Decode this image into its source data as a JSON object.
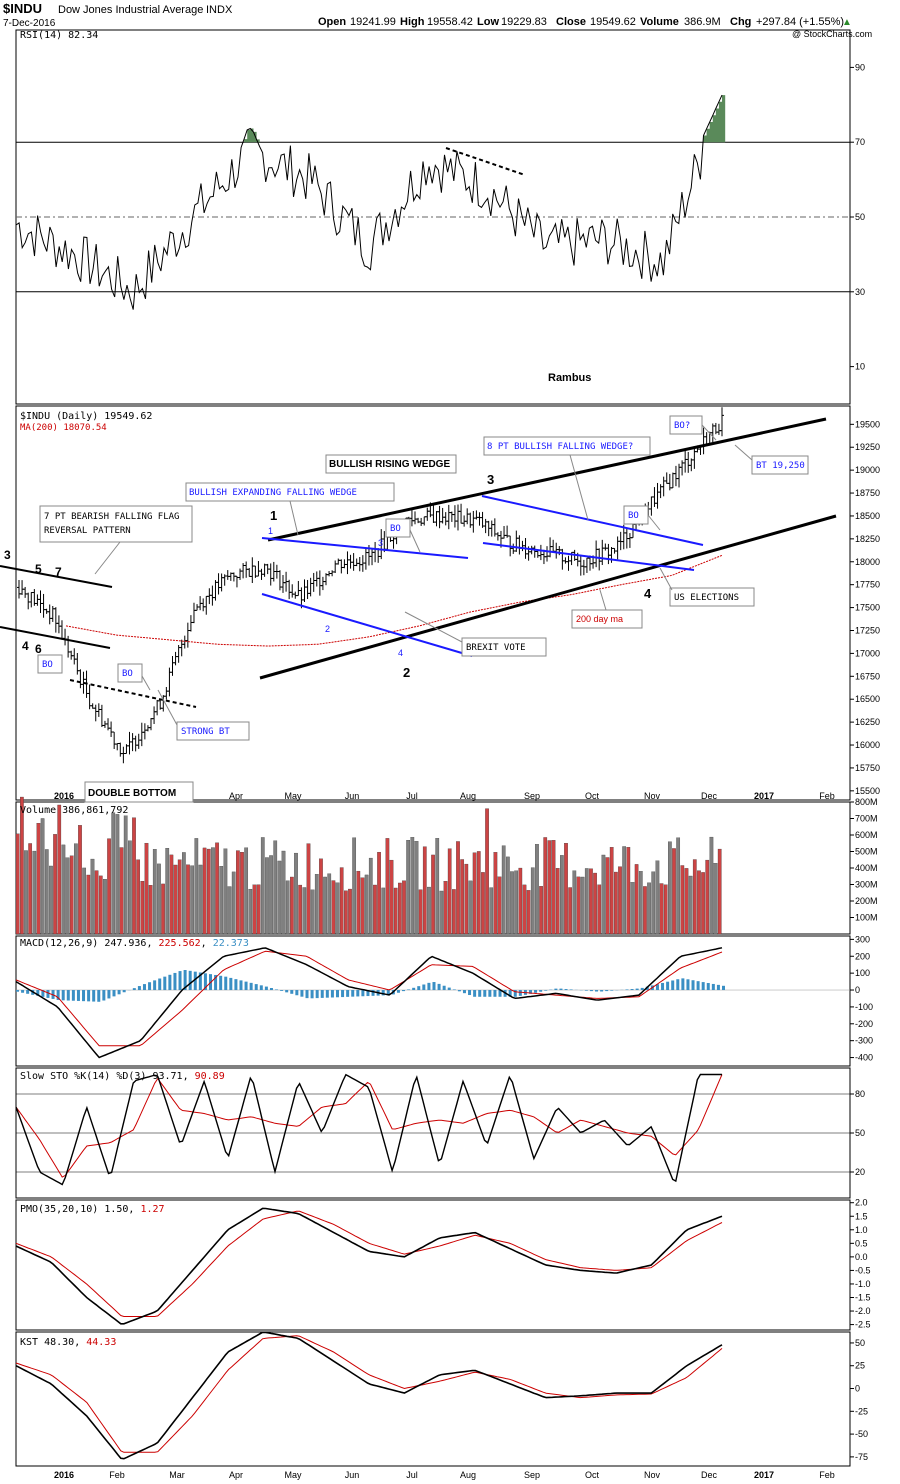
{
  "header": {
    "symbol": "$INDU",
    "name": "Dow Jones Industrial Average",
    "exchange": "INDX",
    "date": "7-Dec-2016",
    "open_label": "Open",
    "open": "19241.99",
    "high_label": "High",
    "high": "19558.42",
    "low_label": "Low",
    "low": "19229.83",
    "close_label": "Close",
    "close": "19549.62",
    "volume_label": "Volume",
    "volume": "386.9M",
    "chg_label": "Chg",
    "chg": "+297.84 (+1.55%)",
    "chg_arrow": "▲",
    "watermark": "@ StockCharts.com"
  },
  "colors": {
    "up": "#000000",
    "down": "#cc0000",
    "vol_up": "#808080",
    "vol_down": "#cc4444",
    "macd_hist": "#3a8fc4",
    "rsi_fill": "#5a8a5a",
    "blue_annot": "#1a1aff",
    "signal": "#cc0000"
  },
  "chart_data": [
    {
      "type": "line",
      "panel": "rsi",
      "label": "RSI(14) 82.34",
      "y_ticks": [
        90,
        70,
        50,
        30,
        10
      ],
      "ylim": [
        0,
        100
      ],
      "annotation": "Rambus",
      "series": [
        {
          "name": "RSI(14)",
          "x": [
            "Dec",
            "Jan",
            "Feb",
            "Mar",
            "Apr",
            "May",
            "Jun",
            "Jul",
            "Aug",
            "Sep",
            "Oct",
            "Nov",
            "Dec"
          ],
          "values": [
            48,
            40,
            30,
            50,
            68,
            60,
            42,
            65,
            58,
            42,
            44,
            38,
            82
          ]
        }
      ]
    },
    {
      "type": "line",
      "panel": "price",
      "label": "$INDU (Daily) 19549.62",
      "ma_label": "MA(200) 18070.54",
      "y_ticks": [
        19500,
        19250,
        19000,
        18750,
        18500,
        18250,
        18000,
        17750,
        17500,
        17250,
        17000,
        16750,
        16500,
        16250,
        16000,
        15750,
        15500
      ],
      "ylim": [
        15400,
        19700
      ],
      "x_ticks": [
        "2016",
        "Feb",
        "Mar",
        "Apr",
        "May",
        "Jun",
        "Jul",
        "Aug",
        "Sep",
        "Oct",
        "Nov",
        "Dec",
        "2017",
        "Feb"
      ],
      "series": [
        {
          "name": "$INDU",
          "values": [
            17720,
            17400,
            16500,
            15900,
            16450,
            17500,
            17850,
            17950,
            17600,
            17980,
            18050,
            18450,
            18500,
            18450,
            18200,
            18100,
            18000,
            18150,
            18650,
            19100,
            19549
          ]
        },
        {
          "name": "MA(200)",
          "values": [
            17300,
            17200,
            17150,
            17100,
            17080,
            17100,
            17180,
            17300,
            17450,
            17560,
            17640,
            17750,
            17850,
            18070
          ]
        }
      ],
      "annotations": [
        "BULLISH RISING WEDGE",
        "BULLISH EXPANDING FALLING WEDGE",
        "8 PT BULLISH FALLING WEDGE?",
        "7 PT BEARISH FALLING FLAG REVERSAL PATTERN",
        "DOUBLE BOTTOM",
        "STRONG BT",
        "BREXIT VOTE",
        "US ELECTIONS",
        "200 day ma",
        "BT 19,250",
        "BO",
        "BO?"
      ]
    },
    {
      "type": "bar",
      "panel": "volume",
      "label": "Volume 386,861,792",
      "y_ticks": [
        "800M",
        "700M",
        "600M",
        "500M",
        "400M",
        "300M",
        "200M",
        "100M"
      ],
      "ylim": [
        0,
        800
      ]
    },
    {
      "type": "line",
      "panel": "macd",
      "label": "MACD(12,26,9)",
      "values_label": [
        "247.936",
        "225.562",
        "22.373"
      ],
      "y_ticks": [
        300,
        200,
        100,
        0,
        -100,
        -200,
        -300,
        -400
      ],
      "ylim": [
        -450,
        320
      ]
    },
    {
      "type": "line",
      "panel": "sto",
      "label": "Slow STO %K(14) %D(3)",
      "values_label": [
        "93.71",
        "90.89"
      ],
      "y_ticks": [
        80,
        50,
        20
      ],
      "ylim": [
        0,
        100
      ]
    },
    {
      "type": "line",
      "panel": "pmo",
      "label": "PMO(35,20,10)",
      "values_label": [
        "1.50",
        "1.27"
      ],
      "y_ticks": [
        "2.0",
        "1.5",
        "1.0",
        "0.5",
        "0.0",
        "-0.5",
        "-1.0",
        "-1.5",
        "-2.0",
        "-2.5"
      ],
      "ylim": [
        -2.7,
        2.1
      ]
    },
    {
      "type": "line",
      "panel": "kst",
      "label": "KST",
      "values_label": [
        "48.30",
        "44.33"
      ],
      "y_ticks": [
        50,
        25,
        0,
        -25,
        -50,
        -75
      ],
      "ylim": [
        -85,
        62
      ]
    }
  ],
  "price_annotations": {
    "wedge_title": "BULLISH RISING WEDGE",
    "expanding": "BULLISH EXPANDING FALLING WEDGE",
    "falling": "8 PT BULLISH FALLING WEDGE?",
    "flag1": "7 PT BEARISH FALLING FLAG",
    "flag2": "REVERSAL PATTERN",
    "double_bottom": "DOUBLE BOTTOM",
    "strong_bt": "STRONG BT",
    "brexit": "BREXIT VOTE",
    "elections": "US ELECTIONS",
    "ma200": "200 day ma",
    "bt": "BT 19,250",
    "bo": "BO",
    "bo_q": "BO?",
    "n1": "1",
    "n2": "2",
    "n3": "3",
    "n4": "4",
    "n5": "5",
    "n6": "6",
    "n7": "7"
  }
}
